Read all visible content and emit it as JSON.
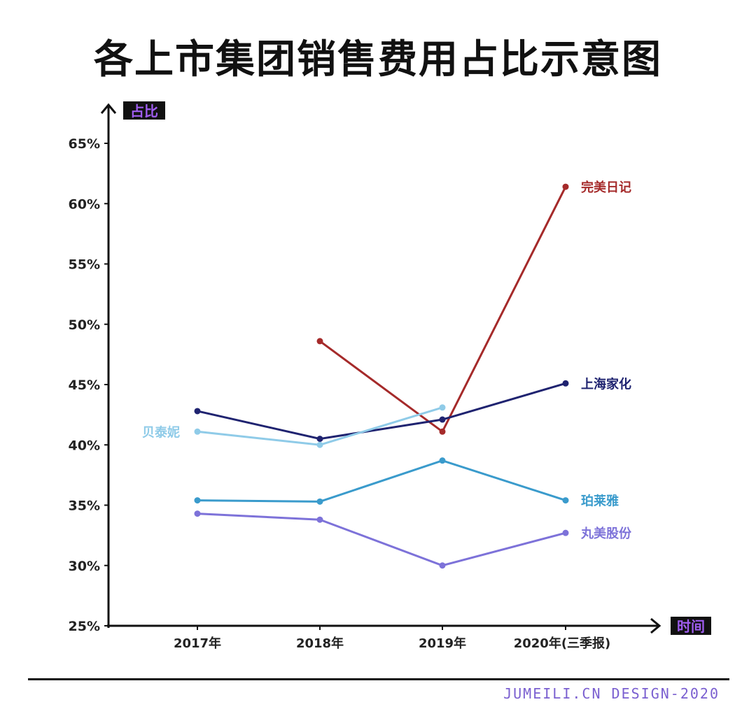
{
  "chart_data": {
    "type": "line",
    "title": "各上市集团销售费用占比示意图",
    "ylabel": "占比",
    "xlabel": "时间",
    "categories": [
      "2017年",
      "2018年",
      "2019年",
      "2020年(三季报)"
    ],
    "yticks": [
      "25%",
      "30%",
      "35%",
      "40%",
      "45%",
      "50%",
      "55%",
      "60%",
      "65%"
    ],
    "ylim": [
      25,
      65
    ],
    "grid": false,
    "legend": "inline labels at line ends",
    "series": [
      {
        "name": "完美日记",
        "color": "#a52a2a",
        "values": [
          null,
          48.6,
          41.1,
          61.4
        ]
      },
      {
        "name": "上海家化",
        "color": "#1f2370",
        "values": [
          42.8,
          40.5,
          42.1,
          45.1
        ]
      },
      {
        "name": "贝泰妮",
        "color": "#8fcbe8",
        "values": [
          41.1,
          40.0,
          43.1,
          null
        ]
      },
      {
        "name": "珀莱雅",
        "color": "#3a9bcc",
        "values": [
          35.4,
          35.3,
          38.7,
          35.4
        ]
      },
      {
        "name": "丸美股份",
        "color": "#7d72d9",
        "values": [
          34.3,
          33.8,
          30.0,
          32.7
        ]
      }
    ]
  },
  "axis_label_colors": {
    "background": "#111111",
    "text": "#a05df0"
  },
  "footer": "JUMEILI.CN DESIGN-2020"
}
